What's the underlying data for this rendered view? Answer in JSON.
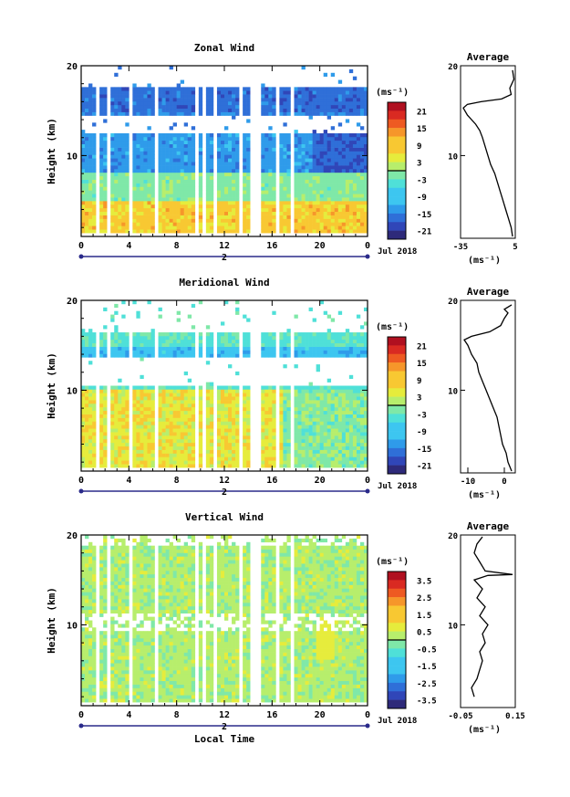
{
  "chart_data": [
    {
      "type": "heatmap",
      "title": "Zonal Wind",
      "ylabel": "Height (km)",
      "ylim": [
        1,
        20
      ],
      "x_ticks": [
        "0",
        "4",
        "8",
        "12",
        "16",
        "20",
        "0"
      ],
      "y_ticks": [
        "10",
        "20"
      ],
      "date_label": "Jul 2018",
      "day_label": "2",
      "colorbar": {
        "unit": "(ms⁻¹)",
        "ticks": [
          "21",
          "15",
          "9",
          "3",
          "-3",
          "-9",
          "-15",
          "-21"
        ],
        "range": [
          -24,
          24
        ]
      },
      "profile": {
        "title": "Average",
        "xlabel": "(ms⁻¹)",
        "x_ticks": [
          "-35",
          "5"
        ],
        "xlim": [
          -35,
          5
        ],
        "y_ticks": [
          "10",
          "20"
        ],
        "points": [
          [
            3,
            1
          ],
          [
            2,
            2
          ],
          [
            0,
            3
          ],
          [
            -2,
            4
          ],
          [
            -4,
            5
          ],
          [
            -6,
            6
          ],
          [
            -8,
            7
          ],
          [
            -10,
            8
          ],
          [
            -13,
            9
          ],
          [
            -15,
            10
          ],
          [
            -17,
            11
          ],
          [
            -19,
            12
          ],
          [
            -21,
            12.8
          ],
          [
            -24,
            13.5
          ],
          [
            -30,
            14.5
          ],
          [
            -33,
            15.3
          ],
          [
            -30,
            15.7
          ],
          [
            -20,
            16
          ],
          [
            -5,
            16.3
          ],
          [
            2,
            16.8
          ],
          [
            1,
            17.5
          ],
          [
            4,
            18.5
          ],
          [
            3,
            19.5
          ]
        ]
      }
    },
    {
      "type": "heatmap",
      "title": "Meridional Wind",
      "ylabel": "Height (km)",
      "ylim": [
        1,
        20
      ],
      "x_ticks": [
        "0",
        "4",
        "8",
        "12",
        "16",
        "20",
        "0"
      ],
      "y_ticks": [
        "10",
        "20"
      ],
      "date_label": "Jul 2018",
      "day_label": "2",
      "colorbar": {
        "unit": "(ms⁻¹)",
        "ticks": [
          "21",
          "15",
          "9",
          "3",
          "-3",
          "-9",
          "-15",
          "-21"
        ],
        "range": [
          -24,
          24
        ]
      },
      "profile": {
        "title": "Average",
        "xlabel": "(ms⁻¹)",
        "x_ticks": [
          "-10",
          "0"
        ],
        "xlim": [
          -12,
          3
        ],
        "y_ticks": [
          "10",
          "20"
        ],
        "points": [
          [
            2,
            1
          ],
          [
            1,
            2
          ],
          [
            0.5,
            3
          ],
          [
            -0.5,
            4
          ],
          [
            -1,
            5
          ],
          [
            -1.5,
            6
          ],
          [
            -2,
            7
          ],
          [
            -3,
            8
          ],
          [
            -4,
            9
          ],
          [
            -5,
            10
          ],
          [
            -6,
            11
          ],
          [
            -7,
            12
          ],
          [
            -7.5,
            13
          ],
          [
            -9,
            14
          ],
          [
            -10,
            15
          ],
          [
            -11,
            15.6
          ],
          [
            -9,
            16
          ],
          [
            -4,
            16.5
          ],
          [
            -1,
            17.2
          ],
          [
            0,
            18
          ],
          [
            1,
            18.6
          ],
          [
            0,
            19
          ],
          [
            2,
            19.5
          ]
        ]
      }
    },
    {
      "type": "heatmap",
      "title": "Vertical Wind",
      "ylabel": "Height (km)",
      "xlabel": "Local Time",
      "ylim": [
        1,
        20
      ],
      "x_ticks": [
        "0",
        "4",
        "8",
        "12",
        "16",
        "20",
        "0"
      ],
      "y_ticks": [
        "10",
        "20"
      ],
      "date_label": "Jul 2018",
      "day_label": "2",
      "colorbar": {
        "unit": "(ms⁻¹)",
        "ticks": [
          "3.5",
          "2.5",
          "1.5",
          "0.5",
          "-0.5",
          "-1.5",
          "-2.5",
          "-3.5"
        ],
        "range": [
          -4,
          4
        ]
      },
      "profile": {
        "title": "Average",
        "xlabel": "(ms⁻¹)",
        "x_ticks": [
          "-0.05",
          "0.15"
        ],
        "xlim": [
          -0.05,
          0.15
        ],
        "y_ticks": [
          "10",
          "20"
        ],
        "points": [
          [
            0.0,
            2
          ],
          [
            -0.01,
            3
          ],
          [
            0.01,
            4
          ],
          [
            0.02,
            5
          ],
          [
            0.03,
            6
          ],
          [
            0.02,
            7
          ],
          [
            0.04,
            8
          ],
          [
            0.03,
            9
          ],
          [
            0.05,
            10
          ],
          [
            0.02,
            11
          ],
          [
            0.04,
            12
          ],
          [
            0.01,
            13
          ],
          [
            0.03,
            14
          ],
          [
            0.0,
            15
          ],
          [
            0.05,
            15.5
          ],
          [
            0.14,
            15.6
          ],
          [
            0.04,
            16
          ],
          [
            0.02,
            17
          ],
          [
            0.0,
            18
          ],
          [
            0.01,
            19
          ],
          [
            0.03,
            19.8
          ]
        ]
      }
    }
  ]
}
